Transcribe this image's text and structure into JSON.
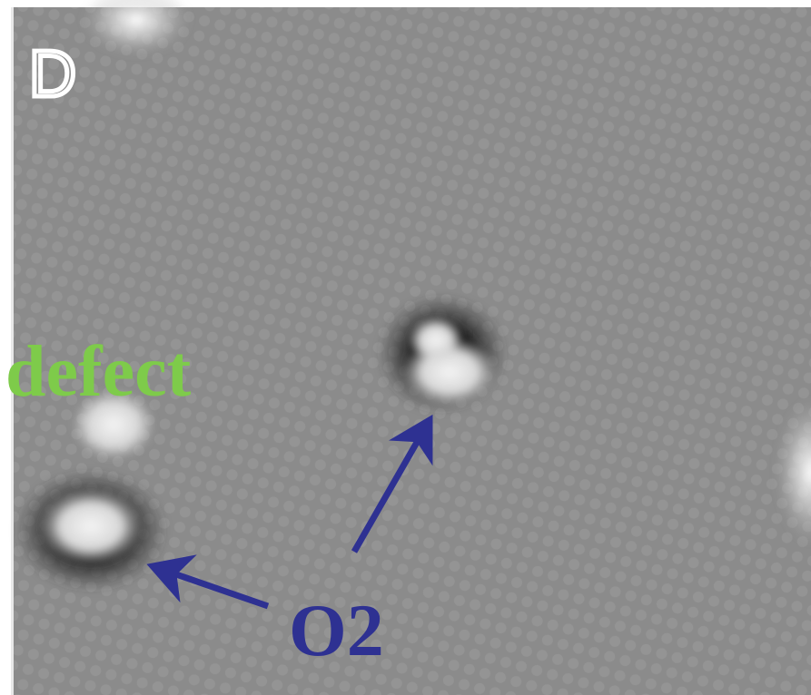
{
  "panel_label": "D",
  "annotations": {
    "defect": "defect",
    "o2": "O2"
  }
}
